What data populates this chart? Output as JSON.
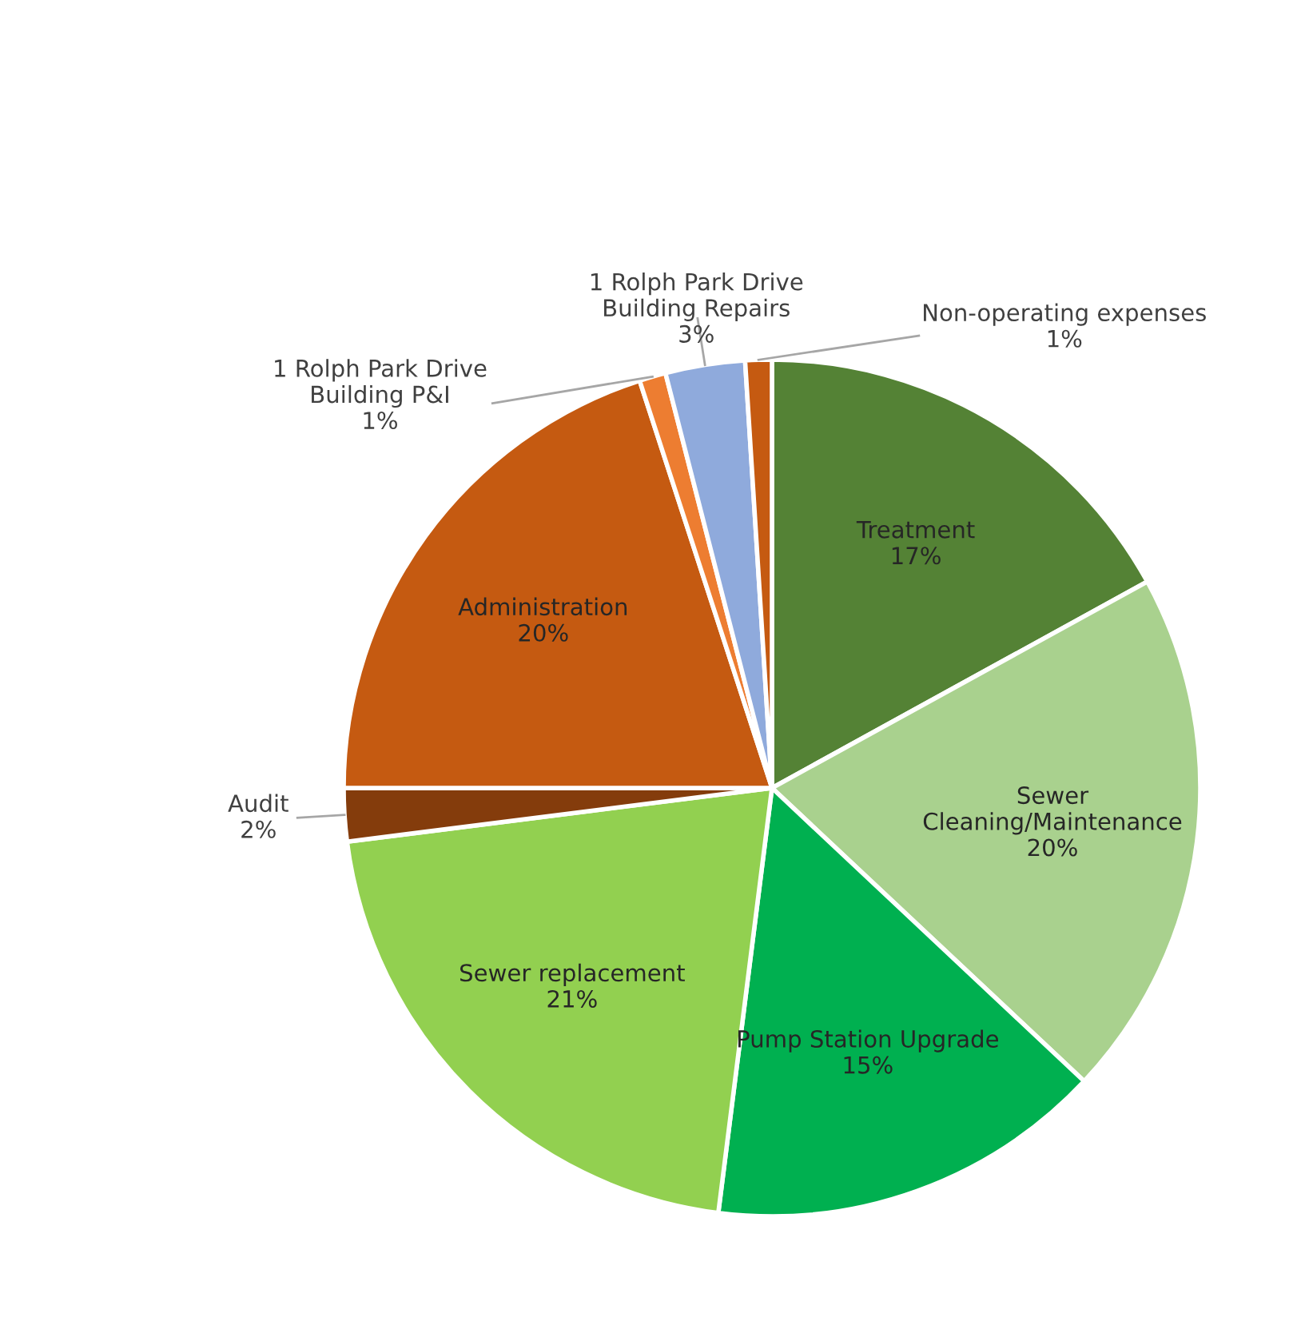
{
  "chart_data": {
    "type": "pie",
    "categories": [
      "Treatment",
      "Sewer\nCleaning/Maintenance",
      "Pump Station Upgrade",
      "Sewer replacement",
      "Audit",
      "Administration",
      "1 Rolph Park Drive\nBuilding P&I",
      "1 Rolph Park Drive\nBuilding Repairs",
      "Non-operating expenses"
    ],
    "values": [
      17,
      20,
      15,
      21,
      2,
      20,
      1,
      3,
      1
    ],
    "colors": [
      "#548235",
      "#a9d18e",
      "#00b050",
      "#92d050",
      "#843c0c",
      "#c55a11",
      "#ed7d31",
      "#8faadc",
      "#c55a11"
    ],
    "value_labels": [
      "17%",
      "20%",
      "15%",
      "21%",
      "2%",
      "20%",
      "1%",
      "3%",
      "1%"
    ]
  }
}
